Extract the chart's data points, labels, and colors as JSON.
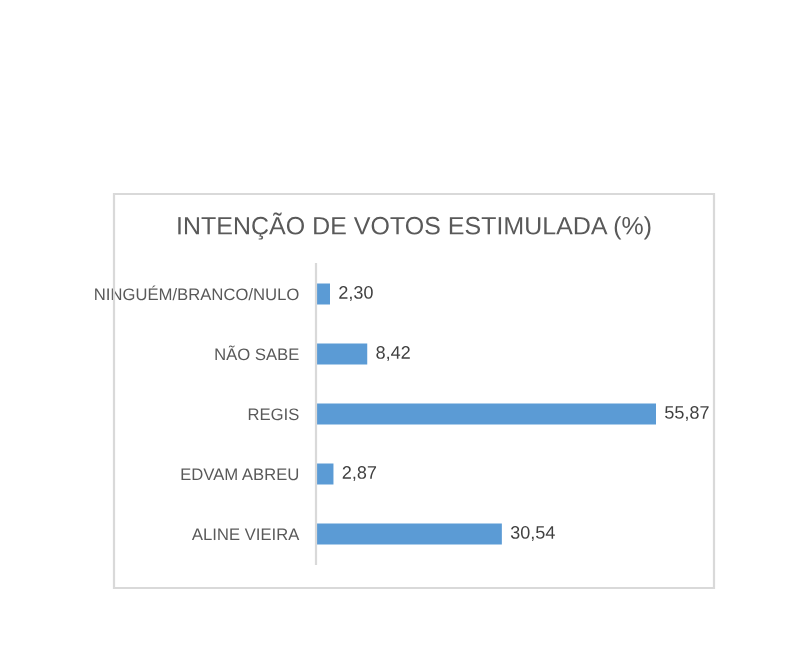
{
  "chart_data": {
    "type": "bar",
    "orientation": "horizontal",
    "title": "INTENÇÃO DE VOTOS ESTIMULADA (%)",
    "categories": [
      "NINGUÉM/BRANCO/NULO",
      "NÃO SABE",
      "REGIS",
      "EDVAM ABREU",
      "ALINE VIEIRA"
    ],
    "values": [
      2.3,
      8.42,
      55.87,
      2.87,
      30.54
    ],
    "value_labels": [
      "2,30",
      "8,42",
      "55,87",
      "2,87",
      "30,54"
    ],
    "color": "#5b9bd5",
    "grid": false,
    "legend": false
  }
}
